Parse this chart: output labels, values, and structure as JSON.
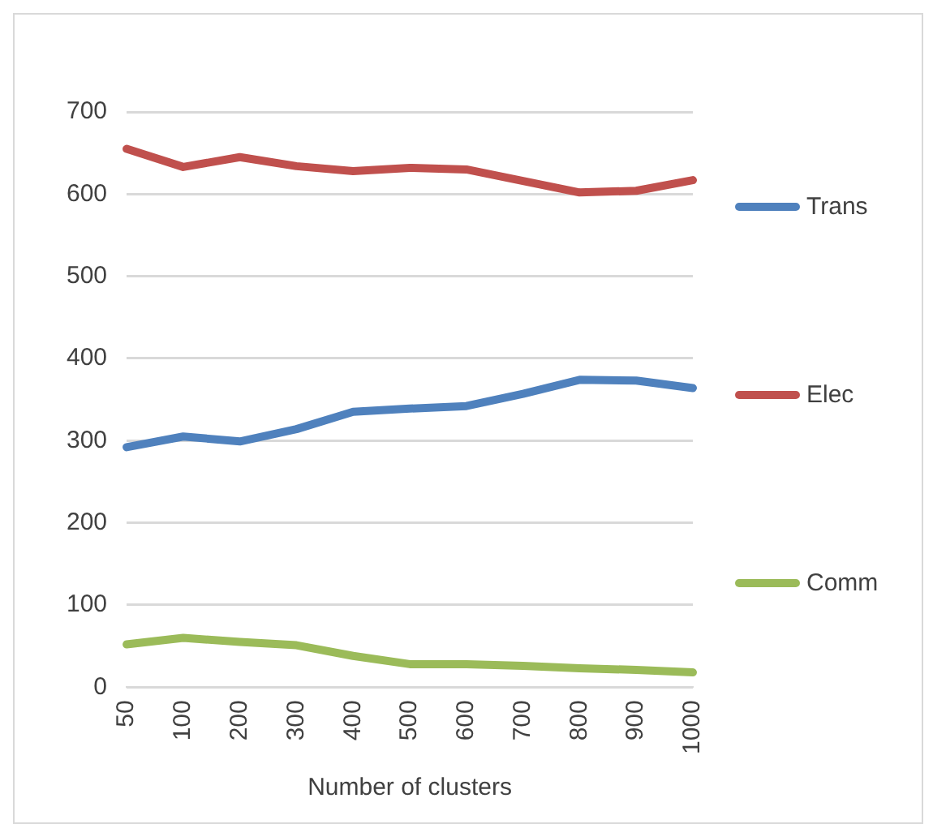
{
  "chart_data": {
    "type": "line",
    "xlabel": "Number of clusters",
    "categories": [
      "50",
      "100",
      "200",
      "300",
      "400",
      "500",
      "600",
      "700",
      "800",
      "900",
      "1000"
    ],
    "series": [
      {
        "name": "Trans",
        "color": "#4f81bd",
        "values": [
          292,
          305,
          299,
          314,
          335,
          339,
          342,
          357,
          374,
          373,
          364
        ]
      },
      {
        "name": "Elec",
        "color": "#c0504d",
        "values": [
          655,
          633,
          645,
          634,
          628,
          632,
          630,
          616,
          602,
          604,
          617
        ]
      },
      {
        "name": "Comm",
        "color": "#9bbb59",
        "values": [
          52,
          60,
          55,
          51,
          38,
          28,
          28,
          26,
          23,
          21,
          18
        ]
      }
    ],
    "ylim": [
      0,
      700
    ],
    "yticks": [
      0,
      100,
      200,
      300,
      400,
      500,
      600,
      700
    ],
    "grid": "y",
    "legend": "right",
    "marker": "none",
    "line_style": "solid"
  }
}
